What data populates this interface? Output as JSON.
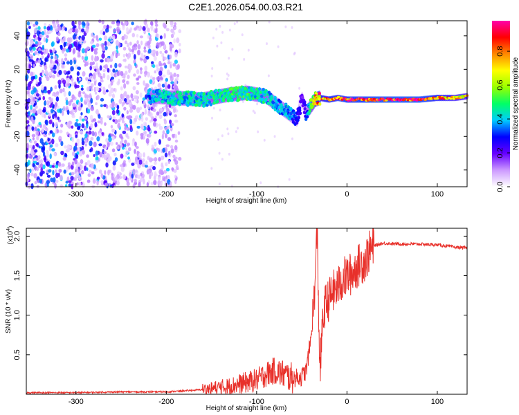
{
  "title": "C2E1.2026.054.00.03.R21",
  "chart_data": [
    {
      "type": "heatmap",
      "xlabel": "Height of straight line (km)",
      "ylabel": "Frequency (Hz)",
      "xlim": [
        -355,
        133
      ],
      "ylim": [
        -50,
        49
      ],
      "xticks": [
        -300,
        -200,
        -100,
        0,
        100
      ],
      "yticks": [
        -40,
        -20,
        0,
        20,
        40
      ],
      "colorbar": {
        "label": "Normalized spectral amplitude",
        "range": [
          0,
          0.98
        ],
        "ticks": [
          "0.0",
          "0.2",
          "0.4",
          "0.6",
          "0.8"
        ],
        "colors": [
          "#ffffff",
          "#cc99ff",
          "#6600ff",
          "#0000ff",
          "#00ccff",
          "#00ff66",
          "#99ff00",
          "#ffff00",
          "#ff8800",
          "#ff0000",
          "#ff00aa"
        ]
      },
      "noise_region_km": [
        -355,
        -190
      ],
      "signal_track": {
        "x": [
          -220,
          -190,
          -160,
          -130,
          -110,
          -90,
          -75,
          -65,
          -55,
          -50,
          -45,
          -40,
          -35,
          -30,
          -20,
          -10,
          0,
          40,
          80,
          100,
          120,
          133
        ],
        "freq": [
          4,
          3,
          2,
          5,
          6,
          4,
          -2,
          -6,
          -10,
          3,
          -6,
          -2,
          2,
          3,
          2,
          3,
          2,
          2,
          2,
          3,
          3,
          4
        ],
        "amplitude": [
          0.4,
          0.45,
          0.45,
          0.5,
          0.5,
          0.45,
          0.4,
          0.4,
          0.3,
          0.2,
          0.3,
          0.5,
          0.75,
          0.85,
          0.85,
          0.9,
          0.9,
          0.95,
          0.95,
          0.85,
          0.75,
          0.7
        ]
      }
    },
    {
      "type": "line",
      "xlabel": "Height of straight line (km)",
      "ylabel": "SNR (10 * v/v)",
      "y_scale_label": "(x10",
      "y_scale_exp": "4",
      "y_scale_suffix": ")",
      "xlim": [
        -355,
        133
      ],
      "ylim": [
        0,
        2.1
      ],
      "xticks": [
        -300,
        -200,
        -100,
        0,
        100
      ],
      "yticks": [
        0.5,
        1.0,
        1.5,
        2.0
      ],
      "ytick_labels": [
        "0.5",
        "1.0",
        "1.5",
        "2.0"
      ],
      "color": "#e8302a",
      "series": [
        {
          "name": "SNR",
          "x": [
            -355,
            -300,
            -250,
            -200,
            -170,
            -150,
            -130,
            -115,
            -100,
            -90,
            -80,
            -70,
            -60,
            -50,
            -45,
            -40,
            -37,
            -35,
            -33,
            -30,
            -28,
            -25,
            -20,
            -15,
            -10,
            -5,
            0,
            5,
            10,
            15,
            20,
            25,
            30,
            40,
            60,
            80,
            100,
            120,
            133
          ],
          "y": [
            0.02,
            0.02,
            0.03,
            0.03,
            0.05,
            0.07,
            0.1,
            0.14,
            0.18,
            0.25,
            0.3,
            0.25,
            0.2,
            0.22,
            0.3,
            0.7,
            1.1,
            1.5,
            2.1,
            0.25,
            0.7,
            1.1,
            1.2,
            1.3,
            1.35,
            1.45,
            1.5,
            1.52,
            1.6,
            1.65,
            1.7,
            1.8,
            1.88,
            1.91,
            1.9,
            1.9,
            1.89,
            1.86,
            1.85
          ]
        }
      ]
    }
  ]
}
